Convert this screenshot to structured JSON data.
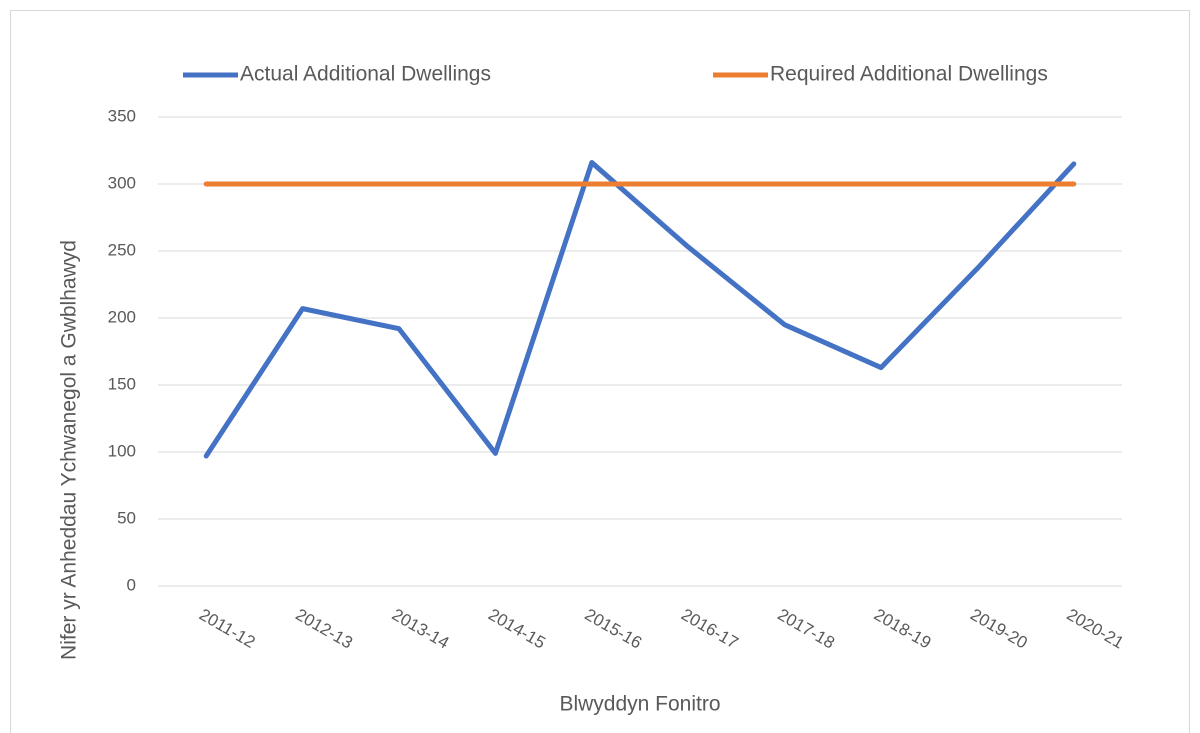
{
  "chart_data": {
    "type": "line",
    "x_label": "Blwyddyn Fonitro",
    "y_label": "Nifer yr Anheddau Ychwanegol a Gwblhawyd",
    "categories": [
      "2011-12",
      "2012-13",
      "2013-14",
      "2014-15",
      "2015-16",
      "2016-17",
      "2017-18",
      "2018-19",
      "2019-20",
      "2020-21"
    ],
    "series": [
      {
        "name": "Actual Additional Dwellings",
        "color": "#4472c4",
        "values": [
          97,
          207,
          192,
          99,
          316,
          253,
          195,
          163,
          237,
          315
        ]
      },
      {
        "name": "Required Additional Dwellings",
        "color": "#ed7d31",
        "values": [
          300,
          300,
          300,
          300,
          300,
          300,
          300,
          300,
          300,
          300
        ]
      }
    ],
    "ylim": [
      0,
      350
    ],
    "yticks": [
      0,
      50,
      100,
      150,
      200,
      250,
      300,
      350
    ],
    "grid": true,
    "legend": "top"
  }
}
